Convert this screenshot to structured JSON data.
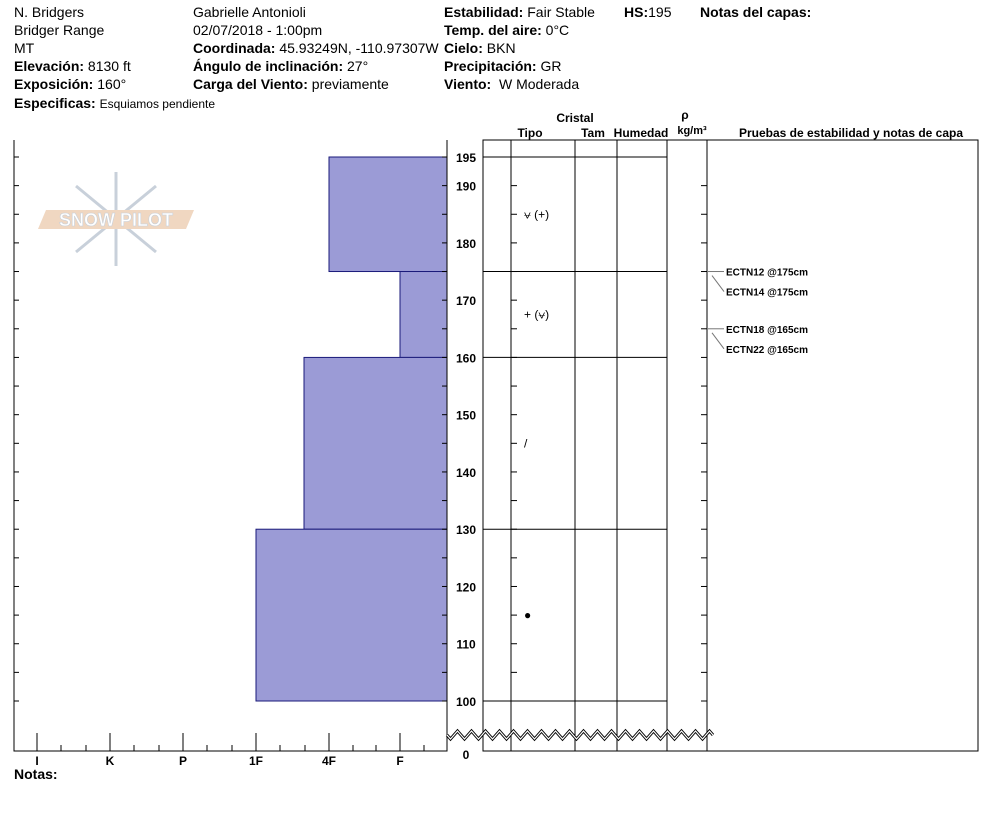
{
  "header": {
    "col1": {
      "location": "N. Bridgers",
      "range": "Bridger Range",
      "state": "MT",
      "elevation_label": "Elevación:",
      "elevation": "8130 ft",
      "aspect_label": "Exposición:",
      "aspect": "160°",
      "specifics_label": "Especificas:",
      "specifics": "Esquiamos pendiente"
    },
    "col2": {
      "observer": "Gabrielle Antonioli",
      "datetime": "02/07/2018 - 1:00pm",
      "coord_label": "Coordinada:",
      "coord": "45.93249N, -110.97307W",
      "slope_label": "Ángulo de inclinación:",
      "slope": "27°",
      "wind_load_label": "Carga del Viento:",
      "wind_load": "previamente"
    },
    "col3": {
      "stability_label": "Estabilidad:",
      "stability": "Fair Stable",
      "air_temp_label": "Temp. del aire:",
      "air_temp": "0°C",
      "sky_label": "Cielo:",
      "sky": "BKN",
      "precip_label": "Precipitación:",
      "precip": "GR",
      "wind_label": "Viento:",
      "wind": "W Moderada"
    },
    "hs_label": "HS:",
    "hs": "195",
    "layer_notes_label": "Notas del capas:"
  },
  "columns": {
    "crystal": "Cristal",
    "type": "Tipo",
    "size": "Tam",
    "moisture": "Humedad",
    "rho": "ρ",
    "density_unit": "kg/m³",
    "tests": "Pruebas de estabilidad y notas de capa"
  },
  "notes_label": "Notas:",
  "logo_text": "SNOW PILOT",
  "chart_data": {
    "type": "bar",
    "orientation": "horizontal",
    "hardness_ticks": [
      "I",
      "K",
      "P",
      "1F",
      "4F",
      "F"
    ],
    "height_ticks": [
      195,
      190,
      180,
      170,
      160,
      150,
      140,
      130,
      120,
      110,
      100,
      0
    ],
    "ylim": [
      0,
      195
    ],
    "axis_break": true,
    "bar_color": "#9b9bd6",
    "layers": [
      {
        "top": 195,
        "bottom": 175,
        "hardness": "4F",
        "crystal": "⩝ (+)"
      },
      {
        "top": 175,
        "bottom": 160,
        "hardness": "F",
        "crystal": "+ (⩝)"
      },
      {
        "top": 160,
        "bottom": 130,
        "hardness": "4F-",
        "crystal": "/"
      },
      {
        "top": 130,
        "bottom": 100,
        "hardness": "1F",
        "crystal": "●"
      }
    ],
    "stability_tests": [
      {
        "label": "ECTN12 @175cm",
        "depth": 175
      },
      {
        "label": "ECTN14 @175cm",
        "depth": 175
      },
      {
        "label": "ECTN18 @165cm",
        "depth": 165
      },
      {
        "label": "ECTN22 @165cm",
        "depth": 165
      }
    ]
  }
}
